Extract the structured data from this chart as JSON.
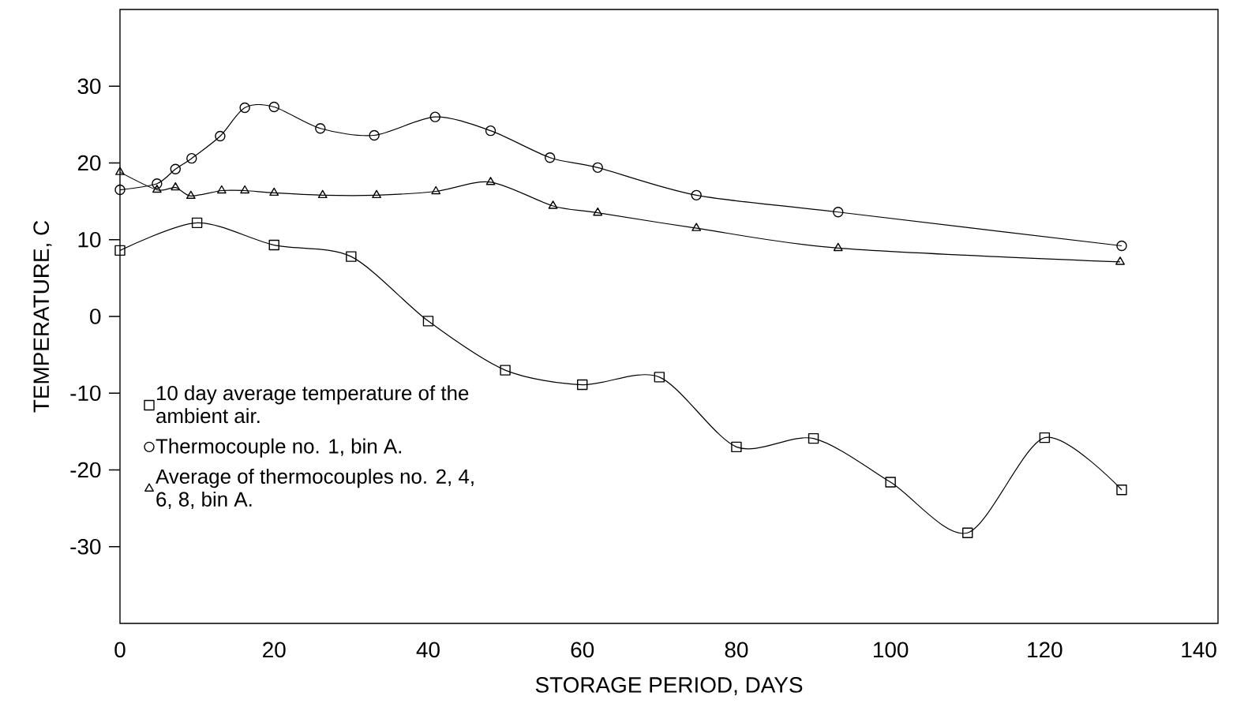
{
  "chart_data": {
    "type": "line",
    "xlabel": "STORAGE PERIOD, DAYS",
    "ylabel": "TEMPERATURE, C",
    "xlim": [
      0,
      142.5
    ],
    "ylim": [
      -40,
      40
    ],
    "xticks": [
      0,
      20,
      40,
      60,
      80,
      100,
      120,
      140
    ],
    "yticks": [
      -30,
      -20,
      -10,
      0,
      10,
      20,
      30
    ],
    "grid": false,
    "legend": "left",
    "line_style": "solid",
    "series": [
      {
        "name": "10 day average temperature of the ambient air.",
        "color": "#000000",
        "marker": "square",
        "x": [
          0,
          10,
          20,
          30,
          40,
          50,
          60,
          70,
          80,
          90,
          100,
          110,
          120,
          130
        ],
        "values": [
          8.6,
          12.2,
          9.3,
          7.8,
          -0.6,
          -7.0,
          -8.9,
          -7.9,
          -17.0,
          -15.9,
          -21.6,
          -28.2,
          -15.8,
          -22.6
        ]
      },
      {
        "name": "Thermocouple no. 1, bin A.",
        "color": "#000000",
        "marker": "circle",
        "x": [
          0,
          4.8,
          7.2,
          9.3,
          13,
          16.2,
          20,
          26,
          33,
          40.9,
          48.1,
          55.8,
          62,
          74.8,
          93.2,
          130
        ],
        "values": [
          16.5,
          17.3,
          19.2,
          20.6,
          23.5,
          27.2,
          27.3,
          24.5,
          23.6,
          26.0,
          24.2,
          20.7,
          19.4,
          15.8,
          13.6,
          9.2
        ]
      },
      {
        "name": "Average of thermocouples no. 2, 4, 6, 8, bin A.",
        "color": "#000000",
        "marker": "triangle",
        "x": [
          0,
          4.8,
          7.2,
          9.2,
          13.2,
          16.2,
          20,
          26.3,
          33.3,
          41,
          48.1,
          56.2,
          62,
          74.8,
          93.2,
          129.8
        ],
        "values": [
          18.8,
          16.5,
          16.8,
          15.7,
          16.4,
          16.4,
          16.1,
          15.8,
          15.8,
          16.3,
          17.5,
          14.4,
          13.5,
          11.5,
          8.9,
          7.1
        ]
      }
    ]
  }
}
